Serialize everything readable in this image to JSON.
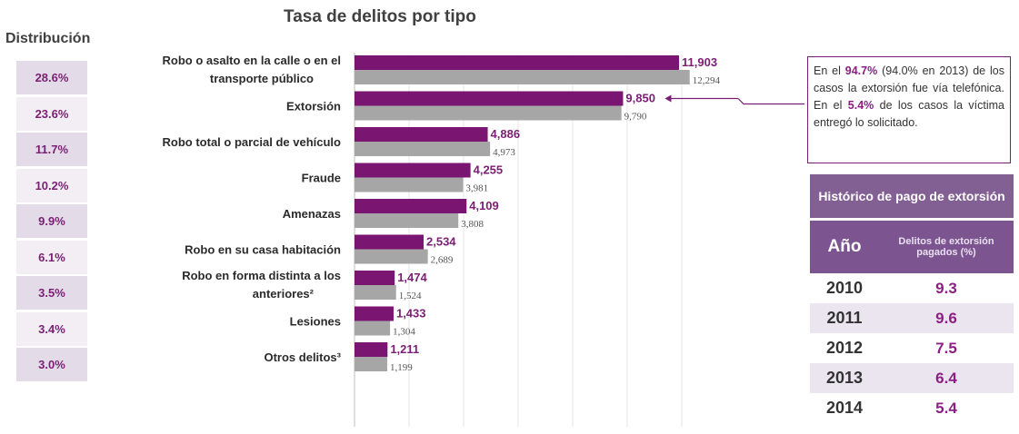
{
  "title": "Tasa de delitos por tipo",
  "distribution_title": "Distribución",
  "distribution": [
    "28.6%",
    "23.6%",
    "11.7%",
    "10.2%",
    "9.9%",
    "6.1%",
    "3.5%",
    "3.4%",
    "3.0%"
  ],
  "chart_data": {
    "type": "bar",
    "orientation": "horizontal",
    "title": "Tasa de delitos por tipo",
    "categories": [
      [
        "Robo o asalto en la calle o en el",
        "transporte público"
      ],
      [
        "Extorsión"
      ],
      [
        "Robo total o parcial de vehículo"
      ],
      [
        "Fraude"
      ],
      [
        "Amenazas"
      ],
      [
        "Robo en su casa habitación"
      ],
      [
        "Robo en forma distinta a los",
        "anteriores²"
      ],
      [
        "Lesiones"
      ],
      [
        "Otros delitos³"
      ]
    ],
    "series": [
      {
        "values": [
          11903,
          9850,
          4886,
          4255,
          4109,
          2534,
          1474,
          1433,
          1211
        ],
        "labels": [
          "11,903",
          "9,850",
          "4,886",
          "4,255",
          "4,109",
          "2,534",
          "1,474",
          "1,433",
          "1,211"
        ],
        "color": "#7b1572"
      },
      {
        "values": [
          12294,
          9790,
          4973,
          3981,
          3808,
          2689,
          1524,
          1304,
          1199
        ],
        "labels": [
          "12,294",
          "9,790",
          "4,973",
          "3,981",
          "3,808",
          "2,689",
          "1,524",
          "1,304",
          "1,199"
        ],
        "color": "#a6a6a6"
      }
    ],
    "xlim": [
      0,
      12500
    ],
    "grid": true
  },
  "note": {
    "p1": "En el ",
    "h1": "94.7%",
    "p2": " (94.0% en 2013) de los casos la extorsión fue vía telefónica. En el ",
    "h2": "5.4%",
    "p3": " de los casos la víctima entregó lo solicitado."
  },
  "history": {
    "title": "Histórico de pago de extorsión",
    "col_year": "Año",
    "col_pct": "Delitos de extorsión pagados (%)",
    "rows": [
      {
        "year": "2010",
        "pct": "9.3"
      },
      {
        "year": "2011",
        "pct": "9.6"
      },
      {
        "year": "2012",
        "pct": "7.5"
      },
      {
        "year": "2013",
        "pct": "6.4"
      },
      {
        "year": "2014",
        "pct": "5.4"
      }
    ]
  },
  "colors": {
    "accent": "#7b1572",
    "gray": "#a6a6a6",
    "table_header": "#836094"
  }
}
